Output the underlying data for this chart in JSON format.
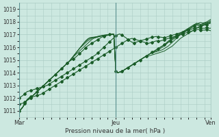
{
  "background_color": "#cce8e0",
  "grid_color": "#aaccc4",
  "line_color": "#1a5c28",
  "ylim": [
    1010.5,
    1019.5
  ],
  "yticks": [
    1011,
    1012,
    1013,
    1014,
    1015,
    1016,
    1017,
    1018,
    1019
  ],
  "xlabel": "Pression niveau de la mer( hPa )",
  "xtick_labels": [
    "Mar",
    "Jeu",
    "Ven"
  ],
  "xtick_positions": [
    0,
    48,
    95
  ],
  "total_points": 96,
  "series": [
    {
      "y": [
        1011.0,
        1011.1,
        1011.3,
        1011.6,
        1011.85,
        1012.0,
        1012.1,
        1012.2,
        1012.35,
        1012.5,
        1012.65,
        1012.8,
        1012.95,
        1013.1,
        1013.25,
        1013.4,
        1013.55,
        1013.7,
        1013.85,
        1014.0,
        1014.15,
        1014.3,
        1014.45,
        1014.6,
        1014.75,
        1014.9,
        1015.0,
        1015.1,
        1015.2,
        1015.35,
        1015.5,
        1015.65,
        1015.8,
        1015.95,
        1016.1,
        1016.2,
        1016.3,
        1016.4,
        1016.5,
        1016.6,
        1016.7,
        1016.8,
        1016.85,
        1016.9,
        1016.95,
        1017.0,
        1017.05,
        1017.05,
        1014.1,
        1014.0,
        1014.05,
        1014.1,
        1014.2,
        1014.3,
        1014.4,
        1014.5,
        1014.6,
        1014.7,
        1014.8,
        1014.9,
        1015.0,
        1015.1,
        1015.2,
        1015.3,
        1015.4,
        1015.5,
        1015.6,
        1015.7,
        1015.8,
        1015.9,
        1016.0,
        1016.1,
        1016.2,
        1016.3,
        1016.4,
        1016.5,
        1016.6,
        1016.7,
        1016.8,
        1016.9,
        1017.0,
        1017.1,
        1017.2,
        1017.3,
        1017.4,
        1017.5,
        1017.6,
        1017.7,
        1017.75,
        1017.7,
        1017.65,
        1017.7,
        1017.75,
        1017.8,
        1017.85,
        1017.9
      ],
      "markers": true
    },
    {
      "y": [
        1011.0,
        1011.1,
        1011.3,
        1011.6,
        1011.85,
        1012.0,
        1012.1,
        1012.2,
        1012.35,
        1012.5,
        1012.65,
        1012.8,
        1012.95,
        1013.1,
        1013.25,
        1013.4,
        1013.55,
        1013.7,
        1013.85,
        1014.0,
        1014.15,
        1014.3,
        1014.45,
        1014.6,
        1014.75,
        1014.9,
        1015.1,
        1015.25,
        1015.4,
        1015.55,
        1015.7,
        1015.85,
        1016.0,
        1016.15,
        1016.3,
        1016.45,
        1016.6,
        1016.7,
        1016.75,
        1016.8,
        1016.85,
        1016.9,
        1016.95,
        1016.97,
        1016.98,
        1017.0,
        1017.0,
        1017.0,
        1014.1,
        1014.0,
        1014.05,
        1014.1,
        1014.2,
        1014.3,
        1014.4,
        1014.5,
        1014.6,
        1014.7,
        1014.8,
        1014.9,
        1015.0,
        1015.1,
        1015.2,
        1015.3,
        1015.4,
        1015.5,
        1015.6,
        1015.7,
        1015.8,
        1015.9,
        1016.0,
        1016.1,
        1016.2,
        1016.35,
        1016.5,
        1016.6,
        1016.7,
        1016.8,
        1016.9,
        1017.0,
        1017.1,
        1017.2,
        1017.3,
        1017.4,
        1017.5,
        1017.6,
        1017.7,
        1017.8,
        1017.85,
        1017.8,
        1017.75,
        1017.8,
        1017.85,
        1017.9,
        1017.95,
        1018.0
      ],
      "markers": false
    },
    {
      "y": [
        1011.0,
        1011.1,
        1011.3,
        1011.6,
        1011.85,
        1012.0,
        1012.1,
        1012.2,
        1012.35,
        1012.5,
        1012.65,
        1012.8,
        1012.95,
        1013.1,
        1013.25,
        1013.4,
        1013.55,
        1013.7,
        1013.85,
        1014.0,
        1014.15,
        1014.3,
        1014.45,
        1014.6,
        1014.75,
        1014.9,
        1015.1,
        1015.3,
        1015.5,
        1015.7,
        1015.9,
        1016.05,
        1016.2,
        1016.35,
        1016.5,
        1016.6,
        1016.7,
        1016.75,
        1016.8,
        1016.85,
        1016.9,
        1016.92,
        1016.95,
        1016.97,
        1016.98,
        1017.0,
        1017.0,
        1017.0,
        1014.1,
        1014.0,
        1014.05,
        1014.1,
        1014.2,
        1014.3,
        1014.4,
        1014.5,
        1014.6,
        1014.7,
        1014.8,
        1014.9,
        1015.0,
        1015.1,
        1015.2,
        1015.3,
        1015.4,
        1015.5,
        1015.6,
        1015.65,
        1015.7,
        1015.8,
        1015.9,
        1016.0,
        1016.1,
        1016.25,
        1016.4,
        1016.55,
        1016.7,
        1016.8,
        1016.9,
        1017.0,
        1017.1,
        1017.2,
        1017.3,
        1017.4,
        1017.5,
        1017.6,
        1017.7,
        1017.8,
        1017.9,
        1017.85,
        1017.8,
        1017.85,
        1017.9,
        1017.95,
        1018.0,
        1018.1
      ],
      "markers": false
    },
    {
      "y": [
        1011.0,
        1011.1,
        1011.3,
        1011.6,
        1011.85,
        1012.0,
        1012.1,
        1012.2,
        1012.35,
        1012.5,
        1012.65,
        1012.8,
        1012.95,
        1013.1,
        1013.25,
        1013.4,
        1013.55,
        1013.7,
        1013.85,
        1014.0,
        1014.15,
        1014.3,
        1014.45,
        1014.6,
        1014.75,
        1014.9,
        1015.1,
        1015.3,
        1015.5,
        1015.7,
        1015.9,
        1016.1,
        1016.3,
        1016.45,
        1016.6,
        1016.7,
        1016.75,
        1016.78,
        1016.8,
        1016.82,
        1016.85,
        1016.88,
        1016.9,
        1016.93,
        1016.96,
        1016.98,
        1017.0,
        1017.0,
        1014.1,
        1014.0,
        1014.05,
        1014.1,
        1014.2,
        1014.3,
        1014.4,
        1014.5,
        1014.6,
        1014.7,
        1014.8,
        1014.9,
        1015.0,
        1015.1,
        1015.2,
        1015.3,
        1015.4,
        1015.5,
        1015.55,
        1015.6,
        1015.65,
        1015.7,
        1015.75,
        1015.8,
        1015.9,
        1016.0,
        1016.1,
        1016.25,
        1016.4,
        1016.55,
        1016.7,
        1016.85,
        1017.0,
        1017.1,
        1017.2,
        1017.3,
        1017.4,
        1017.5,
        1017.6,
        1017.7,
        1017.8,
        1017.9,
        1017.95,
        1017.9,
        1017.95,
        1018.0,
        1018.1,
        1018.2
      ],
      "markers": false
    },
    {
      "y": [
        1011.0,
        1011.1,
        1011.3,
        1011.6,
        1011.85,
        1012.0,
        1012.1,
        1012.2,
        1012.35,
        1012.5,
        1012.65,
        1012.8,
        1012.95,
        1013.1,
        1013.25,
        1013.4,
        1013.55,
        1013.7,
        1013.85,
        1014.0,
        1014.15,
        1014.3,
        1014.45,
        1014.6,
        1014.75,
        1014.9,
        1015.1,
        1015.3,
        1015.5,
        1015.7,
        1015.9,
        1016.1,
        1016.3,
        1016.5,
        1016.65,
        1016.75,
        1016.78,
        1016.8,
        1016.82,
        1016.85,
        1016.88,
        1016.9,
        1016.92,
        1016.95,
        1016.97,
        1016.98,
        1017.0,
        1017.0,
        1014.1,
        1014.0,
        1014.05,
        1014.1,
        1014.2,
        1014.3,
        1014.4,
        1014.5,
        1014.6,
        1014.7,
        1014.8,
        1014.9,
        1015.0,
        1015.1,
        1015.2,
        1015.25,
        1015.3,
        1015.35,
        1015.4,
        1015.45,
        1015.5,
        1015.55,
        1015.6,
        1015.65,
        1015.7,
        1015.8,
        1015.9,
        1016.0,
        1016.1,
        1016.25,
        1016.4,
        1016.55,
        1016.7,
        1016.8,
        1016.9,
        1017.0,
        1017.1,
        1017.2,
        1017.3,
        1017.4,
        1017.5,
        1017.6,
        1017.7,
        1017.75,
        1017.8,
        1017.85,
        1017.9,
        1018.0
      ],
      "markers": false
    },
    {
      "y": [
        1012.0,
        1012.1,
        1012.2,
        1012.35,
        1012.5,
        1012.55,
        1012.6,
        1012.65,
        1012.7,
        1012.75,
        1012.8,
        1012.85,
        1012.9,
        1012.95,
        1013.0,
        1013.1,
        1013.2,
        1013.3,
        1013.4,
        1013.5,
        1013.6,
        1013.7,
        1013.8,
        1013.9,
        1014.0,
        1014.1,
        1014.2,
        1014.3,
        1014.4,
        1014.5,
        1014.6,
        1014.7,
        1014.8,
        1014.9,
        1015.0,
        1015.1,
        1015.2,
        1015.3,
        1015.4,
        1015.55,
        1015.7,
        1015.85,
        1016.0,
        1016.15,
        1016.3,
        1016.45,
        1016.6,
        1016.75,
        1016.9,
        1017.0,
        1017.05,
        1016.95,
        1016.85,
        1016.75,
        1016.6,
        1016.5,
        1016.4,
        1016.35,
        1016.4,
        1016.45,
        1016.5,
        1016.55,
        1016.6,
        1016.65,
        1016.7,
        1016.75,
        1016.8,
        1016.82,
        1016.85,
        1016.82,
        1016.8,
        1016.78,
        1016.75,
        1016.8,
        1016.85,
        1016.9,
        1016.95,
        1017.0,
        1017.05,
        1017.1,
        1017.15,
        1017.2,
        1017.25,
        1017.3,
        1017.35,
        1017.4,
        1017.45,
        1017.5,
        1017.55,
        1017.55,
        1017.5,
        1017.5,
        1017.5,
        1017.55,
        1017.5,
        1017.5
      ],
      "markers": true
    },
    {
      "y": [
        1011.5,
        1011.55,
        1011.6,
        1011.7,
        1011.8,
        1011.9,
        1012.0,
        1012.1,
        1012.15,
        1012.2,
        1012.25,
        1012.3,
        1012.4,
        1012.5,
        1012.6,
        1012.7,
        1012.8,
        1012.9,
        1013.0,
        1013.1,
        1013.2,
        1013.3,
        1013.4,
        1013.5,
        1013.6,
        1013.7,
        1013.8,
        1013.9,
        1014.0,
        1014.1,
        1014.2,
        1014.3,
        1014.4,
        1014.5,
        1014.6,
        1014.7,
        1014.8,
        1014.9,
        1015.0,
        1015.1,
        1015.2,
        1015.3,
        1015.4,
        1015.5,
        1015.6,
        1015.7,
        1015.8,
        1015.9,
        1016.0,
        1016.1,
        1016.2,
        1016.3,
        1016.4,
        1016.5,
        1016.6,
        1016.65,
        1016.7,
        1016.65,
        1016.6,
        1016.55,
        1016.5,
        1016.45,
        1016.4,
        1016.35,
        1016.3,
        1016.35,
        1016.4,
        1016.45,
        1016.5,
        1016.5,
        1016.5,
        1016.55,
        1016.6,
        1016.65,
        1016.7,
        1016.75,
        1016.8,
        1016.85,
        1016.9,
        1016.95,
        1017.0,
        1017.05,
        1017.1,
        1017.15,
        1017.2,
        1017.25,
        1017.3,
        1017.35,
        1017.4,
        1017.4,
        1017.35,
        1017.35,
        1017.35,
        1017.4,
        1017.35,
        1017.3
      ],
      "markers": true
    }
  ]
}
